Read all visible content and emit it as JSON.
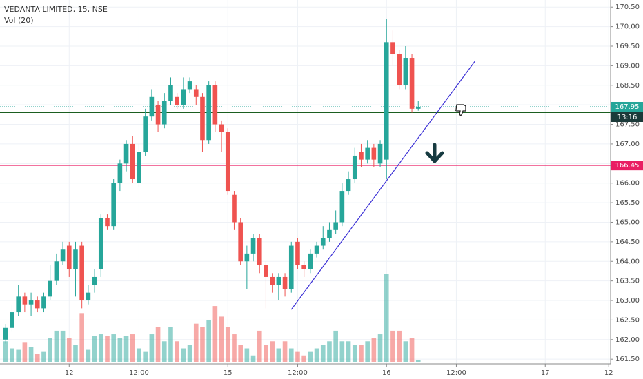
{
  "chart_data": {
    "type": "candlestick",
    "title": "VEDANTA LIMITED, 15, NSE",
    "volume_label": "Vol (20)",
    "x": [
      0,
      1,
      2,
      3,
      4,
      5,
      6,
      7,
      8,
      9,
      10,
      11,
      12,
      13,
      14,
      15,
      16,
      17,
      18,
      19,
      20,
      21,
      22,
      23,
      24,
      25,
      26,
      27,
      28,
      29,
      30,
      31,
      32,
      33,
      34,
      35,
      36,
      37,
      38,
      39,
      40,
      41,
      42,
      43,
      44,
      45,
      46,
      47,
      48,
      49,
      50,
      51,
      52,
      53,
      54,
      55,
      56,
      57,
      58,
      59,
      60,
      61,
      62,
      63,
      64,
      65
    ],
    "open": [
      162.0,
      162.3,
      162.7,
      163.1,
      162.9,
      163.0,
      162.8,
      163.1,
      163.5,
      164.0,
      164.4,
      163.8,
      164.4,
      163.0,
      163.4,
      163.8,
      165.1,
      164.9,
      166.0,
      166.5,
      167.0,
      166.0,
      166.8,
      167.7,
      168.0,
      167.5,
      168.1,
      168.2,
      168.0,
      168.4,
      168.4,
      168.2,
      167.1,
      168.5,
      167.5,
      167.3,
      165.7,
      165.0,
      164.0,
      164.2,
      164.6,
      163.9,
      163.6,
      163.4,
      163.6,
      163.3,
      164.5,
      163.9,
      163.8,
      164.2,
      164.4,
      164.6,
      164.8,
      165.0,
      165.8,
      166.1,
      166.8,
      166.6,
      166.9,
      166.5,
      166.6,
      169.6,
      169.3,
      168.5,
      169.2,
      167.9
    ],
    "high": [
      162.4,
      162.9,
      163.4,
      163.2,
      163.2,
      163.1,
      163.2,
      163.9,
      164.2,
      164.5,
      164.5,
      164.5,
      164.5,
      163.4,
      163.8,
      165.2,
      165.2,
      166.1,
      166.6,
      167.1,
      167.2,
      167.0,
      167.9,
      168.4,
      168.1,
      168.3,
      168.7,
      168.3,
      168.7,
      168.7,
      168.5,
      168.3,
      168.6,
      168.6,
      167.6,
      167.4,
      165.8,
      165.1,
      164.4,
      164.7,
      164.7,
      164.0,
      163.7,
      163.7,
      163.7,
      164.5,
      164.6,
      164.0,
      164.3,
      164.5,
      164.9,
      165.0,
      165.3,
      166.0,
      166.3,
      166.9,
      167.0,
      167.1,
      167.0,
      167.1,
      170.2,
      169.9,
      169.4,
      169.5,
      169.3,
      168.1
    ],
    "low": [
      161.9,
      162.2,
      162.6,
      162.7,
      162.6,
      162.7,
      162.7,
      163.0,
      163.4,
      163.9,
      163.6,
      163.1,
      162.8,
      162.9,
      163.2,
      163.6,
      164.8,
      164.8,
      165.8,
      166.3,
      166.0,
      165.9,
      166.7,
      167.6,
      167.3,
      167.4,
      168.0,
      167.9,
      167.9,
      168.3,
      168.0,
      166.8,
      167.0,
      167.3,
      166.8,
      165.7,
      164.8,
      163.9,
      163.3,
      164.0,
      163.7,
      162.8,
      163.2,
      163.0,
      163.1,
      163.2,
      163.8,
      163.6,
      163.7,
      164.1,
      164.3,
      164.5,
      164.7,
      164.9,
      165.7,
      166.0,
      166.4,
      166.5,
      166.4,
      166.4,
      166.1,
      169.0,
      168.4,
      168.4,
      167.8,
      167.85
    ],
    "close": [
      162.3,
      162.7,
      163.1,
      162.9,
      163.0,
      162.8,
      163.1,
      163.5,
      164.0,
      164.3,
      163.8,
      164.3,
      163.0,
      163.2,
      163.6,
      165.1,
      164.9,
      166.0,
      166.5,
      167.0,
      166.1,
      166.8,
      167.7,
      168.2,
      167.5,
      168.1,
      168.5,
      168.0,
      168.4,
      168.6,
      168.2,
      167.1,
      168.5,
      167.5,
      167.3,
      165.8,
      165.0,
      164.0,
      164.2,
      164.6,
      163.9,
      163.6,
      163.4,
      163.6,
      163.3,
      164.4,
      163.9,
      163.8,
      164.2,
      164.4,
      164.6,
      164.8,
      165.0,
      165.8,
      166.1,
      166.7,
      166.6,
      166.9,
      166.6,
      167.0,
      169.6,
      169.3,
      168.5,
      169.2,
      167.9,
      167.95
    ],
    "volume": [
      30,
      20,
      18,
      28,
      22,
      12,
      15,
      35,
      45,
      45,
      35,
      25,
      70,
      18,
      38,
      40,
      38,
      40,
      35,
      38,
      40,
      20,
      15,
      40,
      50,
      30,
      50,
      30,
      20,
      25,
      55,
      50,
      60,
      80,
      65,
      50,
      40,
      25,
      20,
      10,
      45,
      25,
      30,
      20,
      30,
      20,
      15,
      10,
      15,
      20,
      25,
      30,
      45,
      30,
      30,
      25,
      25,
      30,
      35,
      40,
      125,
      45,
      45,
      30,
      35,
      3
    ],
    "up_color": "#26a69a",
    "down_color": "#ef5350",
    "xlim": [
      -0.9,
      95.3
    ],
    "xticks": [
      {
        "value": 10,
        "label": "12"
      },
      {
        "value": 21,
        "label": "12:00"
      },
      {
        "value": 35,
        "label": "15"
      },
      {
        "value": 46,
        "label": "12:00"
      },
      {
        "value": 60,
        "label": "16"
      },
      {
        "value": 71,
        "label": "12:00"
      },
      {
        "value": 85,
        "label": "17"
      },
      {
        "value": 95,
        "label": "12"
      }
    ],
    "ylim": [
      161.38,
      170.68
    ],
    "yticks": [
      {
        "value": 161.5,
        "label": "161.50"
      },
      {
        "value": 162,
        "label": "162.00"
      },
      {
        "value": 162.5,
        "label": "162.50"
      },
      {
        "value": 163,
        "label": "163.00"
      },
      {
        "value": 163.5,
        "label": "163.50"
      },
      {
        "value": 164,
        "label": "164.00"
      },
      {
        "value": 164.5,
        "label": "164.50"
      },
      {
        "value": 165,
        "label": "165.00"
      },
      {
        "value": 165.5,
        "label": "165.50"
      },
      {
        "value": 166,
        "label": "166.00"
      },
      {
        "value": 166.5,
        "label": "166.50"
      },
      {
        "value": 167,
        "label": "167.00"
      },
      {
        "value": 167.5,
        "label": "167.50"
      },
      {
        "value": 168,
        "label": "168.00"
      },
      {
        "value": 168.5,
        "label": "168.50"
      },
      {
        "value": 169,
        "label": "169.00"
      },
      {
        "value": 169.5,
        "label": "169.50"
      },
      {
        "value": 170,
        "label": "170.00"
      },
      {
        "value": 170.5,
        "label": "170.50"
      }
    ],
    "grid": true,
    "last_price": {
      "value": 167.95,
      "label": "167.95",
      "color": "#26a69a"
    },
    "countdown": "13:16",
    "levels": [
      {
        "value": 167.8,
        "label": "167.80",
        "color": "#1b5e20"
      },
      {
        "value": 166.45,
        "label": "166.45",
        "color": "#e91e63"
      }
    ],
    "trendline": {
      "x": [
        45,
        74
      ],
      "values": [
        162.77,
        169.13
      ],
      "color": "#3b30d6"
    }
  }
}
